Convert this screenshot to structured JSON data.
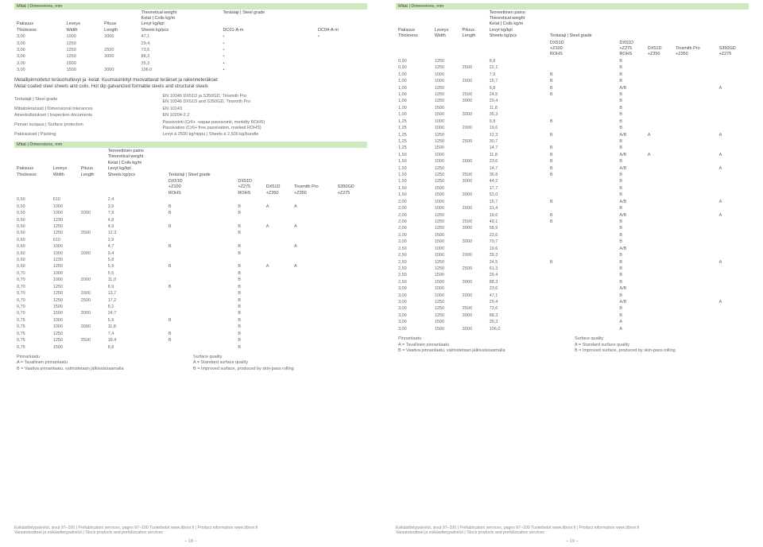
{
  "left": {
    "table1": {
      "head_bar": "Mitat | Dimensions, mm",
      "cols1": [
        "Paksuus",
        "Leveys",
        "Pituus",
        "Teoreettinen paino",
        "Teräslaji | Steel grade",
        ""
      ],
      "cols2": [
        "Thickness",
        "Width",
        "Length",
        "Theoretical weight\nKelat | Coils kg/m\nLevyt kg/kpl\nSheets kg/pcs",
        "DC01-A-m",
        "DC04-A-m"
      ],
      "rows": [
        [
          "3,00",
          "1000",
          "2000",
          "47,1",
          "•",
          "•"
        ],
        [
          "3,00",
          "1250",
          "",
          "29,4",
          "•",
          ""
        ],
        [
          "3,00",
          "1250",
          "2500",
          "73,6",
          "•",
          ""
        ],
        [
          "3,00",
          "1250",
          "3000",
          "88,3",
          "•",
          ""
        ],
        [
          "3,00",
          "1500",
          "",
          "35,3",
          "•",
          ""
        ],
        [
          "3,00",
          "1500",
          "3000",
          "106,0",
          "•",
          ""
        ]
      ]
    },
    "midtext": [
      "Metallipinnoitetut teräsohutlevyt ja -kelat. Kuumasinkityt muovattavat teräkset ja rakenneteräkset",
      "Metal coated steel sheets and coils. Hot dip galvanized formable steels and structural steels"
    ],
    "props": [
      [
        "Teräslajit | Steel grade",
        "EN 10346 DX51D ja S350GD, Tinsmith Pro\nEN 10346 DX51D and S350GD, Tinsmith Pro"
      ],
      [
        "Mittatoleranssit | Dimensional tolerances",
        "EN 10143"
      ],
      [
        "Ainestodistukset | Inspection documents",
        "EN 10204-2.2"
      ],
      [
        "Pinnan suojaus | Surface protection",
        "Passivointi (Cr6+ -vapaa passivointi, merkitty ROHS)\nPassivation (Cr6+ free passivation, marked ROHS)"
      ],
      [
        "Pakkaukset | Packing",
        "Levyt á 2500 kg/nippu | Sheets á 2,500 kg/bundle"
      ]
    ],
    "table2": {
      "head_bar": "Mitat | Dimensions, mm",
      "cols": [
        "Paksuus\nThickness",
        "Leveys\nWidth",
        "Pituus\nLength",
        "Teoreettinen paino\nTheoretical weight\nKelat | Coils kg/m\nLevyt kg/kpl\nSheets kg/pcs",
        "Teräslaji | Steel grade",
        "",
        "",
        "",
        ""
      ],
      "sub": [
        "",
        "",
        "",
        "",
        "DX51D\n+Z100\nROHS",
        "DX51D\n+Z275\nROHS",
        "DX51D\n+Z350",
        "Tinsmith Pro\n+Z350",
        "S350GD\n+Z275"
      ],
      "rows": [
        [
          "0,50",
          "610",
          "",
          "2,4",
          "",
          "",
          "",
          "",
          ""
        ],
        [
          "0,50",
          "1000",
          "",
          "3,9",
          "B",
          "B",
          "A",
          "A",
          ""
        ],
        [
          "0,50",
          "1000",
          "2000",
          "7,9",
          "B",
          "B",
          "",
          "",
          ""
        ],
        [
          "0,50",
          "1230",
          "",
          "4,8",
          "",
          "",
          "",
          "",
          ""
        ],
        [
          "0,50",
          "1250",
          "",
          "4,9",
          "B",
          "B",
          "A",
          "A",
          ""
        ],
        [
          "0,50",
          "1250",
          "2500",
          "12,3",
          "",
          "B",
          "",
          "",
          ""
        ],
        [
          "0,60",
          "610",
          "",
          "2,9",
          "",
          "",
          "",
          "",
          ""
        ],
        [
          "0,60",
          "1000",
          "",
          "4,7",
          "B",
          "B",
          "",
          "A",
          ""
        ],
        [
          "0,60",
          "1000",
          "2000",
          "9,4",
          "",
          "B",
          "",
          "",
          ""
        ],
        [
          "0,60",
          "1230",
          "",
          "5,8",
          "",
          "",
          "",
          "",
          ""
        ],
        [
          "0,60",
          "1250",
          "",
          "5,9",
          "B",
          "B",
          "A",
          "A",
          ""
        ],
        [
          "0,70",
          "1000",
          "",
          "5,5",
          "",
          "B",
          "",
          "",
          ""
        ],
        [
          "0,70",
          "1000",
          "2000",
          "11,0",
          "",
          "B",
          "",
          "",
          ""
        ],
        [
          "0,70",
          "1250",
          "",
          "6,9",
          "B",
          "B",
          "",
          "",
          ""
        ],
        [
          "0,70",
          "1250",
          "2000",
          "13,7",
          "",
          "B",
          "",
          "",
          ""
        ],
        [
          "0,70",
          "1250",
          "2500",
          "17,2",
          "",
          "B",
          "",
          "",
          ""
        ],
        [
          "0,70",
          "1500",
          "",
          "8,2",
          "",
          "B",
          "",
          "",
          ""
        ],
        [
          "0,70",
          "1500",
          "3000",
          "24,7",
          "",
          "B",
          "",
          "",
          ""
        ],
        [
          "0,75",
          "1000",
          "",
          "5,9",
          "B",
          "B",
          "",
          "",
          ""
        ],
        [
          "0,75",
          "1000",
          "2000",
          "11,8",
          "",
          "B",
          "",
          "",
          ""
        ],
        [
          "0,75",
          "1250",
          "",
          "7,4",
          "B",
          "B",
          "",
          "",
          ""
        ],
        [
          "0,75",
          "1250",
          "2500",
          "18,4",
          "B",
          "B",
          "",
          "",
          ""
        ],
        [
          "0,75",
          "1500",
          "",
          "8,8",
          "",
          "B",
          "",
          "",
          ""
        ]
      ]
    },
    "fn_left": "Pinnanlaatu\nA = Tavallinen pinnanlaatu\nB = Vaativa pinnanlaatu, valmistetaan jälkivalssaamalla",
    "fn_right": "Surface quality\nA = Standard surface quality\nB = Improved surface, produced by skin-pass rolling",
    "footer": "Esikäsittelypalvelut, sivut 97–100 | Prefabrication services, pages 97–100 Tuotetiedot www.tibnor.fi | Product information www.tibnor.fi\nVarastotuotteet ja esikäsittelypalvelut | Stock products and prefabrication services",
    "page": "– 18 –"
  },
  "right": {
    "table": {
      "head_bar": "Mitat | Dimensions, mm",
      "sub": [
        "Paksuus\nThickness",
        "Leveys\nWidth",
        "Pituus\nLength",
        "Teoreettinen paino\nTheoretical weight\nKelat | Coils kg/m\nLevyt kg/kpl\nSheets kg/pcs",
        "Teräslaji | Steel grade",
        "",
        "",
        "",
        ""
      ],
      "sub2": [
        "",
        "",
        "",
        "",
        "DX51D\n+Z100\nROHS",
        "DX51D\n+Z275\nROHS",
        "DX51D\n+Z350",
        "Tinsmith Pro\n+Z350",
        "S350GD\n+Z275"
      ],
      "rows": [
        [
          "0,90",
          "1250",
          "",
          "8,8",
          "",
          "B",
          "",
          "",
          ""
        ],
        [
          "0,90",
          "1250",
          "2500",
          "22,1",
          "",
          "B",
          "",
          "",
          ""
        ],
        [
          "1,00",
          "1000",
          "",
          "7,9",
          "B",
          "B",
          "",
          "",
          ""
        ],
        [
          "1,00",
          "1000",
          "2000",
          "15,7",
          "B",
          "B",
          "",
          "",
          ""
        ],
        [
          "1,00",
          "1250",
          "",
          "9,8",
          "B",
          "A/B",
          "",
          "",
          "A"
        ],
        [
          "1,00",
          "1250",
          "2500",
          "24,5",
          "B",
          "B",
          "",
          "",
          ""
        ],
        [
          "1,00",
          "1250",
          "3000",
          "29,4",
          "",
          "B",
          "",
          "",
          ""
        ],
        [
          "1,00",
          "1500",
          "",
          "11,8",
          "",
          "B",
          "",
          "",
          ""
        ],
        [
          "1,00",
          "1500",
          "3000",
          "35,3",
          "",
          "B",
          "",
          "",
          ""
        ],
        [
          "1,25",
          "1000",
          "",
          "9,8",
          "B",
          "B",
          "",
          "",
          ""
        ],
        [
          "1,25",
          "1000",
          "2000",
          "19,6",
          "",
          "B",
          "",
          "",
          ""
        ],
        [
          "1,25",
          "1250",
          "",
          "12,3",
          "B",
          "A/B",
          "A",
          "",
          "A"
        ],
        [
          "1,25",
          "1250",
          "2500",
          "30,7",
          "",
          "B",
          "",
          "",
          ""
        ],
        [
          "1,25",
          "1500",
          "",
          "14,7",
          "B",
          "B",
          "",
          "",
          ""
        ],
        [
          "1,50",
          "1000",
          "",
          "11,8",
          "B",
          "A/B",
          "A",
          "",
          "A"
        ],
        [
          "1,50",
          "1000",
          "2000",
          "23,6",
          "B",
          "B",
          "",
          "",
          ""
        ],
        [
          "1,50",
          "1250",
          "",
          "14,7",
          "B",
          "A/B",
          "",
          "",
          "A"
        ],
        [
          "1,50",
          "1250",
          "2500",
          "36,8",
          "B",
          "B",
          "",
          "",
          ""
        ],
        [
          "1,50",
          "1250",
          "3000",
          "44,2",
          "",
          "B",
          "",
          "",
          ""
        ],
        [
          "1,50",
          "1500",
          "",
          "17,7",
          "",
          "B",
          "",
          "",
          ""
        ],
        [
          "1,50",
          "1500",
          "3000",
          "53,0",
          "",
          "B",
          "",
          "",
          ""
        ],
        [
          "2,00",
          "1000",
          "",
          "15,7",
          "B",
          "A/B",
          "",
          "",
          "A"
        ],
        [
          "2,00",
          "1000",
          "2000",
          "31,4",
          "",
          "B",
          "",
          "",
          ""
        ],
        [
          "2,00",
          "1250",
          "",
          "19,6",
          "B",
          "A/B",
          "",
          "",
          "A"
        ],
        [
          "2,00",
          "1250",
          "2500",
          "49,1",
          "B",
          "B",
          "",
          "",
          ""
        ],
        [
          "2,00",
          "1250",
          "3000",
          "58,9",
          "",
          "B",
          "",
          "",
          ""
        ],
        [
          "2,00",
          "1500",
          "",
          "23,6",
          "",
          "B",
          "",
          "",
          ""
        ],
        [
          "2,00",
          "1500",
          "3000",
          "70,7",
          "",
          "B",
          "",
          "",
          ""
        ],
        [
          "2,50",
          "1000",
          "",
          "19,6",
          "",
          "A/B",
          "",
          "",
          ""
        ],
        [
          "2,50",
          "1000",
          "2000",
          "39,3",
          "",
          "B",
          "",
          "",
          ""
        ],
        [
          "2,50",
          "1250",
          "",
          "24,5",
          "B",
          "B",
          "",
          "",
          "A"
        ],
        [
          "2,50",
          "1250",
          "2500",
          "61,3",
          "",
          "B",
          "",
          "",
          ""
        ],
        [
          "2,50",
          "1500",
          "",
          "29,4",
          "",
          "B",
          "",
          "",
          ""
        ],
        [
          "2,50",
          "1500",
          "3000",
          "88,3",
          "",
          "B",
          "",
          "",
          ""
        ],
        [
          "3,00",
          "1000",
          "",
          "23,6",
          "",
          "A/B",
          "",
          "",
          ""
        ],
        [
          "3,00",
          "1000",
          "2000",
          "47,1",
          "",
          "B",
          "",
          "",
          ""
        ],
        [
          "3,00",
          "1250",
          "",
          "29,4",
          "",
          "A/B",
          "",
          "",
          "A"
        ],
        [
          "3,00",
          "1250",
          "2500",
          "73,6",
          "",
          "B",
          "",
          "",
          ""
        ],
        [
          "3,00",
          "1250",
          "3000",
          "88,3",
          "",
          "B",
          "",
          "",
          ""
        ],
        [
          "3,00",
          "1500",
          "",
          "35,3",
          "",
          "A",
          "",
          "",
          ""
        ],
        [
          "3,00",
          "1500",
          "3000",
          "106,0",
          "",
          "A",
          "",
          "",
          ""
        ]
      ]
    },
    "fn_left": "Pinnanlaatu\nA = Tavallinen pinnanlaatu\nB = Vaativa pinnanlaatu, valmistetaan jälkivalssaamalla",
    "fn_right": "Surface quality\nA = Standard surface quality\nB = Improved surface, produced by skin-pass rolling",
    "footer": "Esikäsittelypalvelut, sivut 97–100 | Prefabrication services, pages 97–100 Tuotetiedot www.tibnor.fi | Product information www.tibnor.fi\nVarastotuotteet ja esikäsittelypalvelut | Stock products and prefabrication services",
    "page": "– 19 –"
  }
}
